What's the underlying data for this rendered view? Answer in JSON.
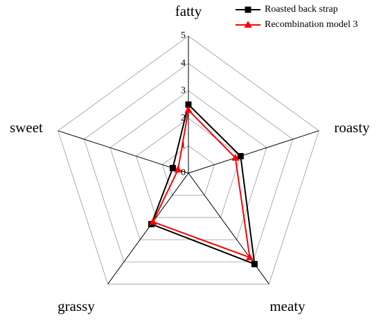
{
  "chart_data": {
    "type": "radar",
    "categories": [
      "fatty",
      "roasty",
      "meaty",
      "grassy",
      "sweet"
    ],
    "series": [
      {
        "name": "Roasted back strap",
        "color": "#000000",
        "marker": "square",
        "values": [
          2.5,
          2.0,
          4.1,
          2.3,
          0.6
        ]
      },
      {
        "name": "Recombination model 3",
        "color": "#ff0000",
        "marker": "triangle",
        "values": [
          2.3,
          1.8,
          3.8,
          2.2,
          0.4
        ]
      }
    ],
    "rlim": [
      0,
      5
    ],
    "rticks": [
      0,
      1,
      2,
      3,
      4,
      5
    ],
    "grid": true,
    "legend": "upper right"
  }
}
